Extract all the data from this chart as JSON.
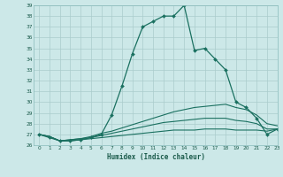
{
  "title": "",
  "xlabel": "Humidex (Indice chaleur)",
  "ylabel": "",
  "background_color": "#cce8e8",
  "grid_color": "#aacccc",
  "line_color": "#1a7060",
  "xlim": [
    -0.5,
    23
  ],
  "ylim": [
    26,
    39
  ],
  "yticks": [
    26,
    27,
    28,
    29,
    30,
    31,
    32,
    33,
    34,
    35,
    36,
    37,
    38,
    39
  ],
  "xticks": [
    0,
    1,
    2,
    3,
    4,
    5,
    6,
    7,
    8,
    9,
    10,
    11,
    12,
    13,
    14,
    15,
    16,
    17,
    18,
    19,
    20,
    21,
    22,
    23
  ],
  "series": [
    {
      "x": [
        0,
        1,
        2,
        3,
        4,
        5,
        6,
        7,
        8,
        9,
        10,
        11,
        12,
        13,
        14,
        15,
        16,
        17,
        18,
        19,
        20,
        21,
        22,
        23
      ],
      "y": [
        27.0,
        26.7,
        26.4,
        26.4,
        26.5,
        26.7,
        27.0,
        28.8,
        31.5,
        34.5,
        37.0,
        37.5,
        38.0,
        38.0,
        39.0,
        34.8,
        35.0,
        34.0,
        33.0,
        30.0,
        29.5,
        28.5,
        27.0,
        27.5
      ],
      "marker": true,
      "linewidth": 0.9
    },
    {
      "x": [
        0,
        1,
        2,
        3,
        4,
        5,
        6,
        7,
        8,
        9,
        10,
        11,
        12,
        13,
        14,
        15,
        16,
        17,
        18,
        19,
        20,
        21,
        22,
        23
      ],
      "y": [
        27.0,
        26.8,
        26.4,
        26.5,
        26.6,
        26.8,
        27.1,
        27.3,
        27.6,
        27.9,
        28.2,
        28.5,
        28.8,
        29.1,
        29.3,
        29.5,
        29.6,
        29.7,
        29.8,
        29.5,
        29.3,
        28.8,
        28.0,
        27.8
      ],
      "marker": false,
      "linewidth": 0.8
    },
    {
      "x": [
        0,
        1,
        2,
        3,
        4,
        5,
        6,
        7,
        8,
        9,
        10,
        11,
        12,
        13,
        14,
        15,
        16,
        17,
        18,
        19,
        20,
        21,
        22,
        23
      ],
      "y": [
        27.0,
        26.8,
        26.4,
        26.5,
        26.6,
        26.7,
        26.9,
        27.1,
        27.3,
        27.5,
        27.7,
        27.9,
        28.1,
        28.2,
        28.3,
        28.4,
        28.5,
        28.5,
        28.5,
        28.3,
        28.2,
        28.0,
        27.5,
        27.5
      ],
      "marker": false,
      "linewidth": 0.8
    },
    {
      "x": [
        0,
        1,
        2,
        3,
        4,
        5,
        6,
        7,
        8,
        9,
        10,
        11,
        12,
        13,
        14,
        15,
        16,
        17,
        18,
        19,
        20,
        21,
        22,
        23
      ],
      "y": [
        27.0,
        26.8,
        26.4,
        26.4,
        26.5,
        26.6,
        26.7,
        26.8,
        26.9,
        27.0,
        27.1,
        27.2,
        27.3,
        27.4,
        27.4,
        27.4,
        27.5,
        27.5,
        27.5,
        27.4,
        27.4,
        27.4,
        27.3,
        27.5
      ],
      "marker": false,
      "linewidth": 0.8
    }
  ]
}
